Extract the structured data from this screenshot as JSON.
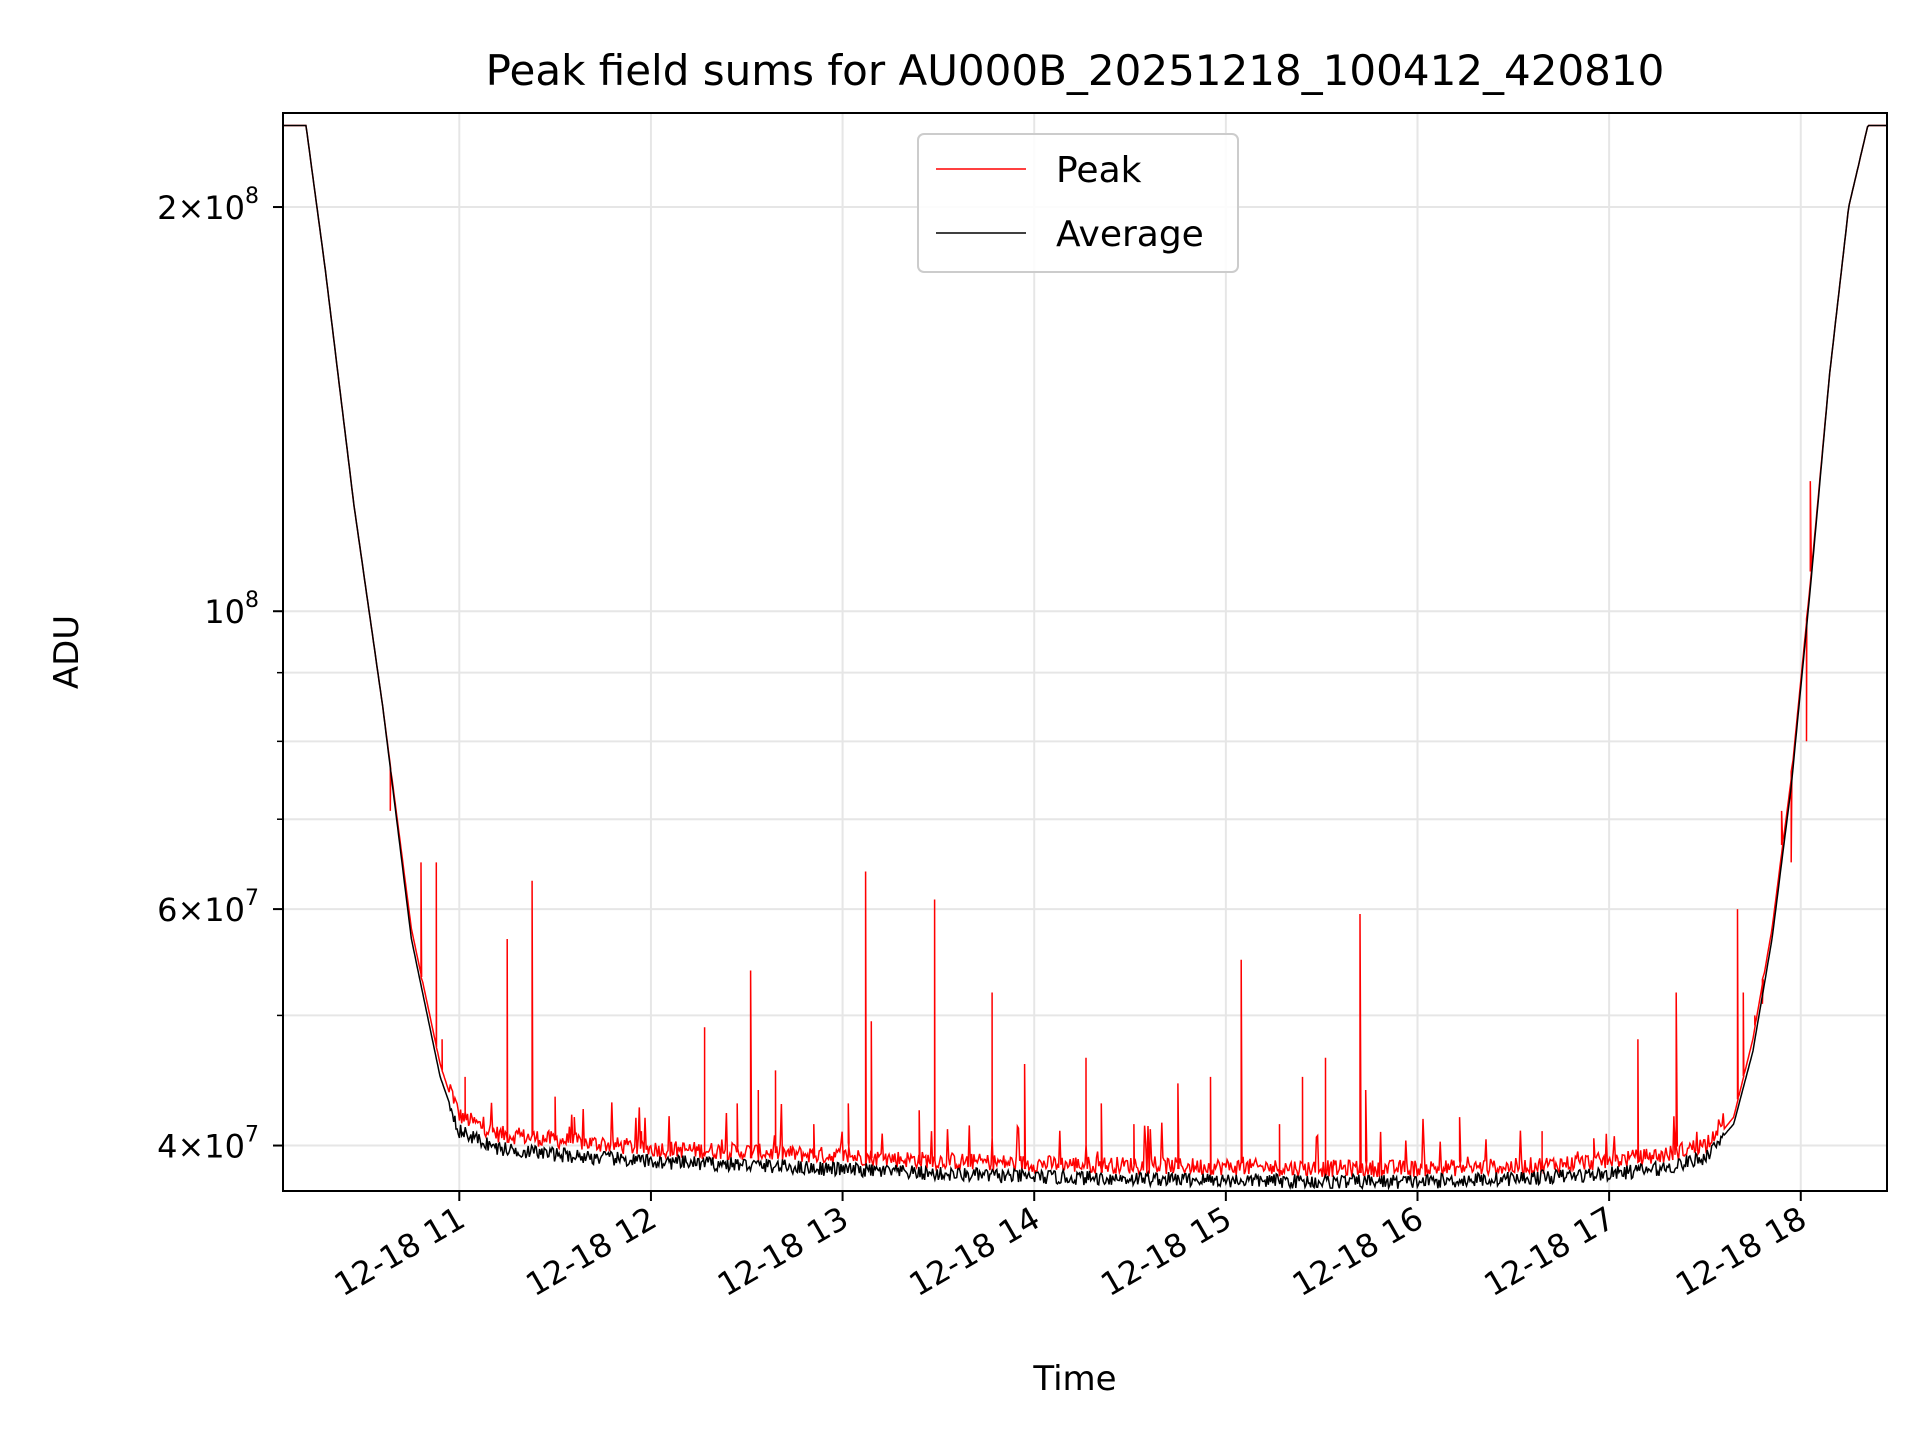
{
  "chart_data": {
    "type": "line",
    "title": "Peak field sums for AU000B_20251218_100412_420810",
    "xlabel": "Time",
    "ylabel": "ADU",
    "yscale": "log",
    "ylim": [
      37000000,
      235000000
    ],
    "xlim_hours": [
      10.08,
      18.45
    ],
    "grid": true,
    "legend_position": "top-center",
    "x_ticks": [
      {
        "value": 11,
        "label": "12-18 11"
      },
      {
        "value": 12,
        "label": "12-18 12"
      },
      {
        "value": 13,
        "label": "12-18 13"
      },
      {
        "value": 14,
        "label": "12-18 14"
      },
      {
        "value": 15,
        "label": "12-18 15"
      },
      {
        "value": 16,
        "label": "12-18 16"
      },
      {
        "value": 17,
        "label": "12-18 17"
      },
      {
        "value": 18,
        "label": "12-18 18"
      }
    ],
    "y_ticks": [
      {
        "value": 40000000,
        "mantissa": "4",
        "times": "×",
        "base": "10",
        "exp": "7"
      },
      {
        "value": 60000000,
        "mantissa": "6",
        "times": "×",
        "base": "10",
        "exp": "7"
      },
      {
        "value": 100000000,
        "mantissa": "",
        "times": "",
        "base": "10",
        "exp": "8"
      },
      {
        "value": 200000000,
        "mantissa": "2",
        "times": "×",
        "base": "10",
        "exp": "8"
      }
    ],
    "y_minor_gridlines": [
      50000000,
      70000000,
      80000000,
      90000000
    ],
    "series": [
      {
        "name": "Peak",
        "color": "#ff0000",
        "baseline": [
          [
            10.08,
            230000000
          ],
          [
            10.2,
            230000000
          ],
          [
            10.3,
            180000000
          ],
          [
            10.45,
            120000000
          ],
          [
            10.6,
            85000000
          ],
          [
            10.75,
            58000000
          ],
          [
            10.9,
            46000000
          ],
          [
            11.0,
            41500000
          ],
          [
            11.2,
            40200000
          ],
          [
            11.5,
            39800000
          ],
          [
            12.0,
            39200000
          ],
          [
            12.5,
            39000000
          ],
          [
            13.0,
            38700000
          ],
          [
            13.5,
            38400000
          ],
          [
            14.0,
            38200000
          ],
          [
            14.5,
            38100000
          ],
          [
            15.0,
            38000000
          ],
          [
            15.5,
            37900000
          ],
          [
            16.0,
            37900000
          ],
          [
            16.5,
            38000000
          ],
          [
            17.0,
            38400000
          ],
          [
            17.3,
            38800000
          ],
          [
            17.5,
            39500000
          ],
          [
            17.65,
            42000000
          ],
          [
            17.75,
            48000000
          ],
          [
            17.85,
            58000000
          ],
          [
            17.95,
            75000000
          ],
          [
            18.05,
            105000000
          ],
          [
            18.15,
            150000000
          ],
          [
            18.25,
            200000000
          ],
          [
            18.35,
            230000000
          ],
          [
            18.45,
            230000000
          ]
        ],
        "spikes": [
          [
            10.64,
            71000000
          ],
          [
            10.8,
            65000000
          ],
          [
            10.88,
            65000000
          ],
          [
            10.91,
            48000000
          ],
          [
            11.03,
            45000000
          ],
          [
            11.25,
            57000000
          ],
          [
            11.38,
            63000000
          ],
          [
            11.5,
            43500000
          ],
          [
            11.6,
            42000000
          ],
          [
            11.95,
            41000000
          ],
          [
            12.28,
            49000000
          ],
          [
            12.45,
            43000000
          ],
          [
            12.52,
            54000000
          ],
          [
            12.56,
            44000000
          ],
          [
            12.65,
            45500000
          ],
          [
            12.85,
            41500000
          ],
          [
            13.03,
            43000000
          ],
          [
            13.12,
            64000000
          ],
          [
            13.15,
            49500000
          ],
          [
            13.4,
            42500000
          ],
          [
            13.48,
            61000000
          ],
          [
            13.78,
            52000000
          ],
          [
            13.95,
            46000000
          ],
          [
            14.27,
            46500000
          ],
          [
            14.35,
            43000000
          ],
          [
            14.52,
            41500000
          ],
          [
            14.75,
            44500000
          ],
          [
            14.92,
            45000000
          ],
          [
            15.08,
            55000000
          ],
          [
            15.28,
            41500000
          ],
          [
            15.4,
            45000000
          ],
          [
            15.52,
            46500000
          ],
          [
            15.7,
            59500000
          ],
          [
            15.73,
            44000000
          ],
          [
            16.22,
            42000000
          ],
          [
            16.65,
            41000000
          ],
          [
            16.92,
            40500000
          ],
          [
            17.15,
            48000000
          ],
          [
            17.35,
            52000000
          ],
          [
            17.67,
            60000000
          ],
          [
            17.7,
            52000000
          ],
          [
            17.76,
            50000000
          ],
          [
            17.8,
            51000000
          ],
          [
            17.9,
            71000000
          ],
          [
            17.95,
            65000000
          ],
          [
            18.03,
            80000000
          ],
          [
            18.05,
            125000000
          ]
        ]
      },
      {
        "name": "Average",
        "color": "#000000",
        "baseline": [
          [
            10.08,
            230000000
          ],
          [
            10.2,
            230000000
          ],
          [
            10.3,
            180000000
          ],
          [
            10.45,
            120000000
          ],
          [
            10.6,
            85000000
          ],
          [
            10.75,
            57000000
          ],
          [
            10.9,
            45000000
          ],
          [
            11.0,
            41000000
          ],
          [
            11.2,
            39800000
          ],
          [
            11.5,
            39400000
          ],
          [
            12.0,
            38900000
          ],
          [
            12.5,
            38700000
          ],
          [
            13.0,
            38400000
          ],
          [
            13.5,
            38100000
          ],
          [
            14.0,
            37900000
          ],
          [
            14.5,
            37800000
          ],
          [
            15.0,
            37700000
          ],
          [
            15.5,
            37600000
          ],
          [
            16.0,
            37600000
          ],
          [
            16.5,
            37800000
          ],
          [
            17.0,
            38100000
          ],
          [
            17.3,
            38500000
          ],
          [
            17.5,
            39200000
          ],
          [
            17.65,
            41500000
          ],
          [
            17.75,
            47000000
          ],
          [
            17.85,
            57000000
          ],
          [
            17.95,
            74000000
          ],
          [
            18.05,
            104000000
          ],
          [
            18.15,
            150000000
          ],
          [
            18.25,
            200000000
          ],
          [
            18.35,
            230000000
          ],
          [
            18.45,
            230000000
          ]
        ]
      }
    ]
  }
}
